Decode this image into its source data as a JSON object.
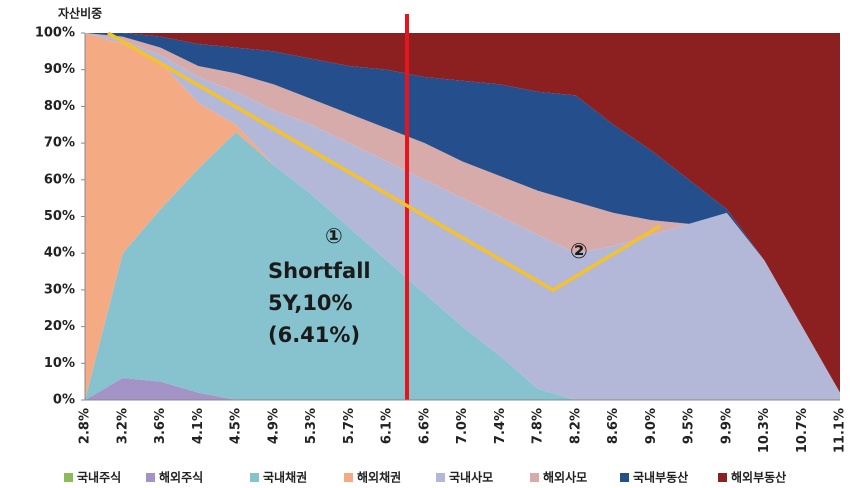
{
  "chart_data": {
    "type": "stacked_area",
    "y_label": "자산비중",
    "categories": [
      "2.8%",
      "3.2%",
      "3.6%",
      "4.1%",
      "4.5%",
      "4.9%",
      "5.3%",
      "5.7%",
      "6.1%",
      "6.6%",
      "7.0%",
      "7.4%",
      "7.8%",
      "8.2%",
      "8.6%",
      "9.0%",
      "9.5%",
      "9.9%",
      "10.3%",
      "10.7%",
      "11.1%"
    ],
    "series": [
      {
        "name": "국내주식",
        "color": "#8dbb5a",
        "values": [
          0,
          0,
          0,
          0,
          0,
          0,
          0,
          0,
          0,
          0,
          0,
          0,
          0,
          0,
          0,
          0,
          0,
          0,
          0,
          0,
          0
        ]
      },
      {
        "name": "해외주식",
        "color": "#a393c6",
        "values": [
          0,
          6,
          5,
          2,
          0,
          0,
          0,
          0,
          0,
          0,
          0,
          0,
          0,
          0,
          0,
          0,
          0,
          0,
          0,
          0,
          0
        ]
      },
      {
        "name": "국내채권",
        "color": "#86c3cf",
        "values": [
          0,
          34,
          47,
          61,
          73,
          64,
          56,
          47,
          38,
          29,
          20,
          12,
          3,
          0,
          0,
          0,
          0,
          0,
          0,
          0,
          0
        ]
      },
      {
        "name": "해외채권",
        "color": "#f4ab84",
        "values": [
          100,
          57,
          40,
          18,
          2,
          0,
          0,
          0,
          0,
          0,
          0,
          0,
          0,
          0,
          0,
          0,
          0,
          0,
          0,
          0,
          0
        ]
      },
      {
        "name": "국내사모",
        "color": "#b4b8d8",
        "values": [
          0,
          1,
          2,
          7,
          9,
          15,
          19,
          23,
          27,
          31,
          35,
          38,
          42,
          40,
          42,
          45,
          48,
          51,
          38,
          20,
          2
        ]
      },
      {
        "name": "해외사모",
        "color": "#d8abab",
        "values": [
          0,
          1,
          2,
          3,
          5,
          7,
          7,
          8,
          9,
          10,
          10,
          11,
          12,
          14,
          9,
          4,
          0,
          0,
          0,
          0,
          0
        ]
      },
      {
        "name": "국내부동산",
        "color": "#254f8c",
        "values": [
          0,
          1,
          3,
          6,
          7,
          9,
          11,
          13,
          16,
          18,
          22,
          25,
          27,
          29,
          24,
          19,
          12,
          1,
          0,
          0,
          0
        ]
      },
      {
        "name": "해외부동산",
        "color": "#8c1f1f",
        "values": [
          0,
          0,
          1,
          3,
          4,
          5,
          7,
          9,
          10,
          12,
          13,
          14,
          16,
          17,
          25,
          32,
          40,
          48,
          62,
          80,
          98
        ]
      }
    ],
    "ylim": [
      0,
      100
    ],
    "yticks": [
      {
        "value": 0,
        "label": "0%"
      },
      {
        "value": 10,
        "label": "10%"
      },
      {
        "value": 20,
        "label": "20%"
      },
      {
        "value": 30,
        "label": "30%"
      },
      {
        "value": 40,
        "label": "40%"
      },
      {
        "value": 50,
        "label": "50%"
      },
      {
        "value": 60,
        "label": "60%"
      },
      {
        "value": 70,
        "label": "70%"
      },
      {
        "value": 80,
        "label": "80%"
      },
      {
        "value": 90,
        "label": "90%"
      },
      {
        "value": 100,
        "label": "100%"
      }
    ],
    "annotations": [
      "①",
      "Shortfall",
      "5Y,10%",
      "(6.41%)",
      "②"
    ],
    "legend": "bottom"
  }
}
